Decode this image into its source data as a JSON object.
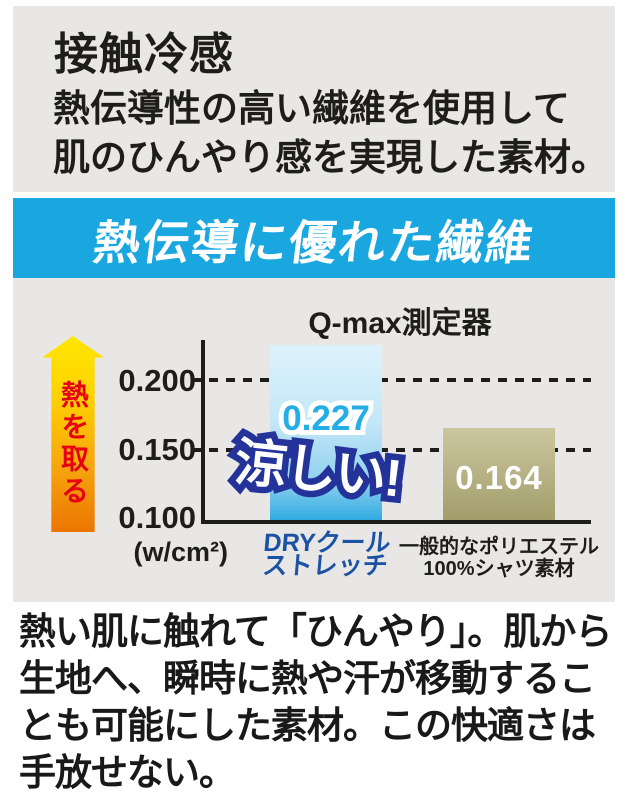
{
  "header": {
    "title": "接触冷感",
    "subtitle_lines": [
      "熱伝導性の高い繊維を使用して",
      "肌のひんやり感を実現した素材。"
    ]
  },
  "banner": {
    "label": "熱伝導に優れた繊維"
  },
  "chart": {
    "title": "Q-max測定器",
    "unit_label": "(w/cm²)",
    "axis_arrow_label": "熱を取る",
    "y_tick_labels": [
      "0.200",
      "0.150",
      "0.100"
    ],
    "bars": [
      {
        "value_label": "0.227",
        "annotation": "涼しい!",
        "name_lines": [
          "DRYクール",
          "ストレッチ"
        ]
      },
      {
        "value_label": "0.164",
        "name_lines": [
          "一般的なポリエステル",
          "100%シャツ素材"
        ]
      }
    ]
  },
  "chart_data": {
    "type": "bar",
    "title": "Q-max測定器",
    "categories": [
      "DRYクールストレッチ",
      "一般的なポリエステル100%シャツ素材"
    ],
    "values": [
      0.227,
      0.164
    ],
    "xlabel": "",
    "ylabel": "(w/cm²)",
    "yticks": [
      0.1,
      0.15,
      0.2
    ],
    "ylim": [
      0.1,
      0.23
    ],
    "grid": "dashed horizontal gridlines at 0.150 and 0.200",
    "legend": "none",
    "annotations": [
      "涼しい!",
      "熱を取る (y-axis arrow, heat absorption direction)"
    ]
  },
  "footer": {
    "lines": [
      "熱い肌に触れて「ひんやり」。肌から",
      "生地へ、瞬時に熱や汗が移動するこ",
      "とも可能にした素材。この快適さは",
      "手放せない。"
    ]
  },
  "colors": {
    "panel_gray": "#e8e7e5",
    "banner_blue": "#1aa7e0",
    "bar_dry_bottom_blue": "#2fabe2",
    "bar_poly_khaki": "#b5b083",
    "value_dry_cyan": "#25aee6",
    "callout_outline_navy": "#24339a",
    "bar_dry_label_blue": "#1b52a4",
    "arrow_text_red": "#e60012",
    "arrow_gradient_top": "#ffe502",
    "arrow_gradient_bottom": "#ec7500"
  }
}
